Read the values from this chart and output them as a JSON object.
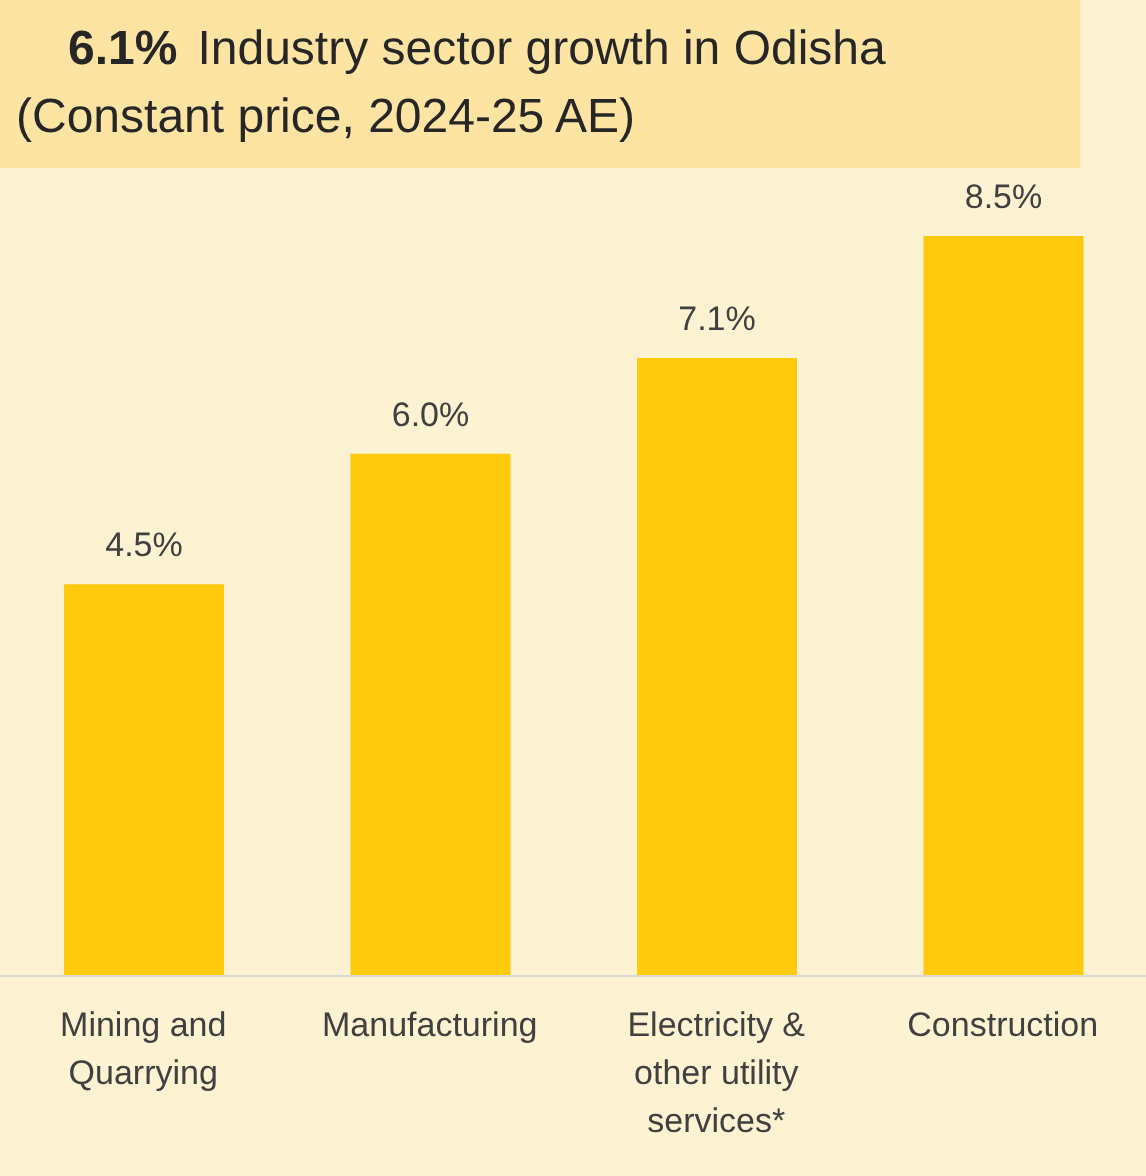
{
  "chart_data": {
    "type": "bar",
    "title": "Industry sector growth in Odisha",
    "subtitle": "(Constant price, 2024-25 AE)",
    "annotations": [
      "6.1%"
    ],
    "categories": [
      "Mining and Quarrying",
      "Manufacturing",
      "Electricity & other utility services*",
      "Construction"
    ],
    "values": [
      4.5,
      6.0,
      7.1,
      8.5
    ],
    "value_labels": [
      "4.5%",
      "6.0%",
      "7.1%",
      "8.5%"
    ],
    "color": "#ffc90e",
    "tick_labels": "x"
  }
}
